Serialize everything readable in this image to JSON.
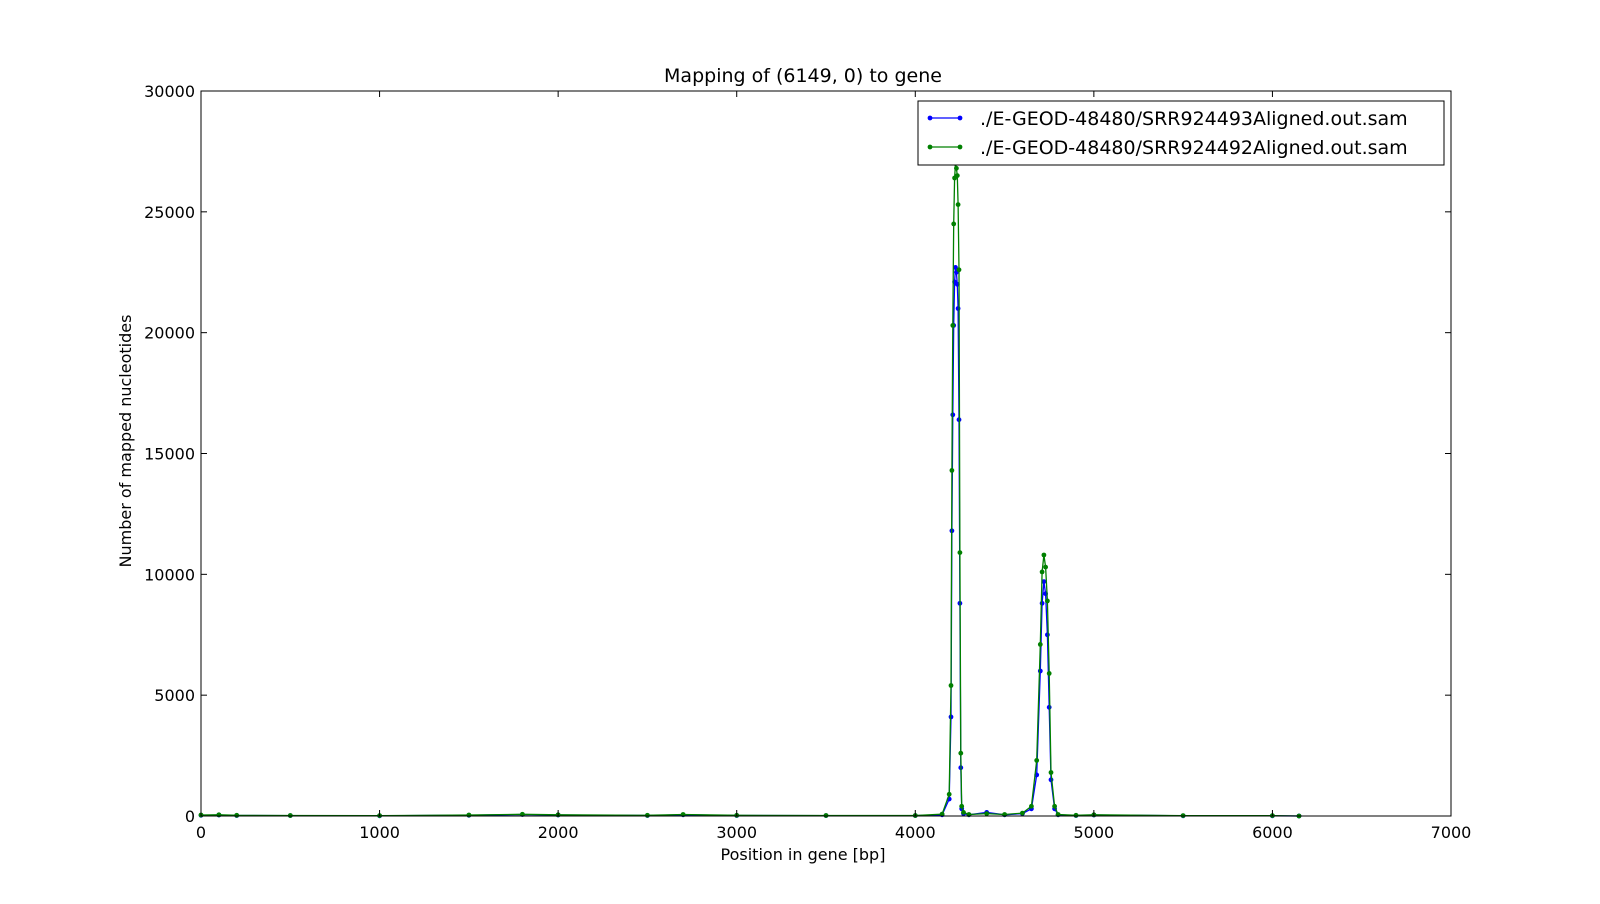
{
  "chart_data": {
    "type": "line",
    "title": "Mapping of (6149, 0) to gene",
    "xlabel": "Position in gene [bp]",
    "ylabel": "Number of mapped nucleotides",
    "xlim": [
      0,
      7000
    ],
    "ylim": [
      0,
      30000
    ],
    "xticks": [
      "0",
      "1000",
      "2000",
      "3000",
      "4000",
      "5000",
      "6000",
      "7000"
    ],
    "yticks": [
      "0",
      "5000",
      "10000",
      "15000",
      "20000",
      "25000",
      "30000"
    ],
    "grid": false,
    "legend_position": "top-right",
    "series": [
      {
        "name": "./E-GEOD-48480/SRR924493Aligned.out.sam",
        "color": "#0000ff",
        "x": [
          0,
          100,
          200,
          500,
          1000,
          1500,
          1800,
          2000,
          2500,
          2700,
          3000,
          3500,
          4000,
          4150,
          4190,
          4200,
          4205,
          4210,
          4215,
          4220,
          4225,
          4230,
          4235,
          4240,
          4245,
          4250,
          4255,
          4260,
          4270,
          4300,
          4400,
          4500,
          4600,
          4650,
          4680,
          4700,
          4710,
          4720,
          4730,
          4740,
          4750,
          4760,
          4780,
          4800,
          4900,
          5000,
          5500,
          6000,
          6149
        ],
        "y": [
          30,
          40,
          20,
          15,
          10,
          30,
          60,
          40,
          20,
          50,
          20,
          15,
          15,
          50,
          700,
          4100,
          11800,
          16600,
          20300,
          22100,
          22700,
          22500,
          22000,
          21000,
          16400,
          8800,
          2000,
          300,
          100,
          50,
          150,
          50,
          100,
          300,
          1700,
          6000,
          8800,
          9700,
          9200,
          7500,
          4500,
          1500,
          300,
          50,
          20,
          40,
          10,
          10,
          0
        ]
      },
      {
        "name": "./E-GEOD-48480/SRR924492Aligned.out.sam",
        "color": "#008000",
        "x": [
          0,
          100,
          200,
          500,
          1000,
          1500,
          1800,
          2000,
          2500,
          2700,
          3000,
          3500,
          4000,
          4150,
          4190,
          4200,
          4205,
          4210,
          4215,
          4220,
          4225,
          4230,
          4235,
          4240,
          4245,
          4250,
          4255,
          4260,
          4270,
          4300,
          4400,
          4500,
          4600,
          4650,
          4680,
          4700,
          4710,
          4720,
          4730,
          4740,
          4750,
          4760,
          4780,
          4800,
          4900,
          5000,
          5500,
          6000,
          6149
        ],
        "y": [
          40,
          50,
          30,
          20,
          15,
          40,
          70,
          50,
          30,
          60,
          30,
          20,
          20,
          80,
          900,
          5400,
          14300,
          20300,
          24500,
          26400,
          27000,
          26800,
          26500,
          25300,
          22600,
          10900,
          2600,
          400,
          150,
          60,
          100,
          60,
          120,
          400,
          2300,
          7100,
          10100,
          10800,
          10300,
          8900,
          5900,
          1800,
          400,
          60,
          30,
          50,
          15,
          15,
          0
        ]
      }
    ]
  }
}
